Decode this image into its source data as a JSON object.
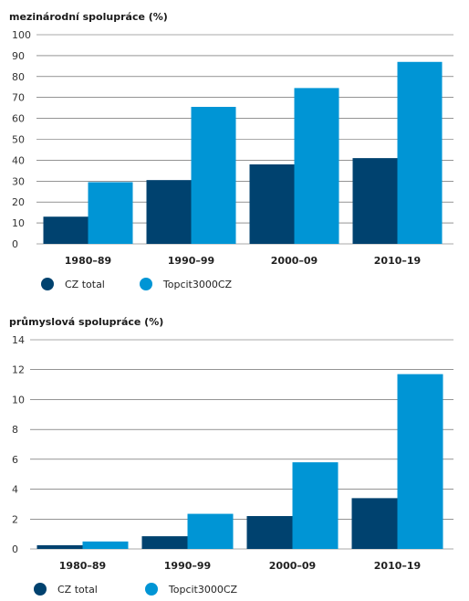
{
  "colors": {
    "cz_total": "#00426f",
    "topcit": "#0095d5",
    "grid": "#555555"
  },
  "chart_data": [
    {
      "type": "bar",
      "title": "mezinárodní spolupráce (%)",
      "categories": [
        "1980–89",
        "1990–99",
        "2000–09",
        "2010–19"
      ],
      "series": [
        {
          "name": "CZ total",
          "values": [
            13,
            30.5,
            38,
            41
          ]
        },
        {
          "name": "Topcit3000CZ",
          "values": [
            29.5,
            65.5,
            74.5,
            87
          ]
        }
      ],
      "ylim": [
        0,
        100
      ],
      "yticks": [
        0,
        10,
        20,
        30,
        40,
        50,
        60,
        70,
        80,
        90,
        100
      ],
      "grid": true,
      "legend": "bottom-left"
    },
    {
      "type": "bar",
      "title": "průmyslová spolupráce (%)",
      "categories": [
        "1980–89",
        "1990–99",
        "2000–09",
        "2010–19"
      ],
      "series": [
        {
          "name": "CZ total",
          "values": [
            0.25,
            0.85,
            2.2,
            3.4
          ]
        },
        {
          "name": "Topcit3000CZ",
          "values": [
            0.5,
            2.35,
            5.8,
            11.7
          ]
        }
      ],
      "ylim": [
        0,
        14
      ],
      "yticks": [
        0,
        2,
        4,
        6,
        8,
        10,
        12,
        14
      ],
      "grid": true,
      "legend": "bottom-left"
    }
  ]
}
